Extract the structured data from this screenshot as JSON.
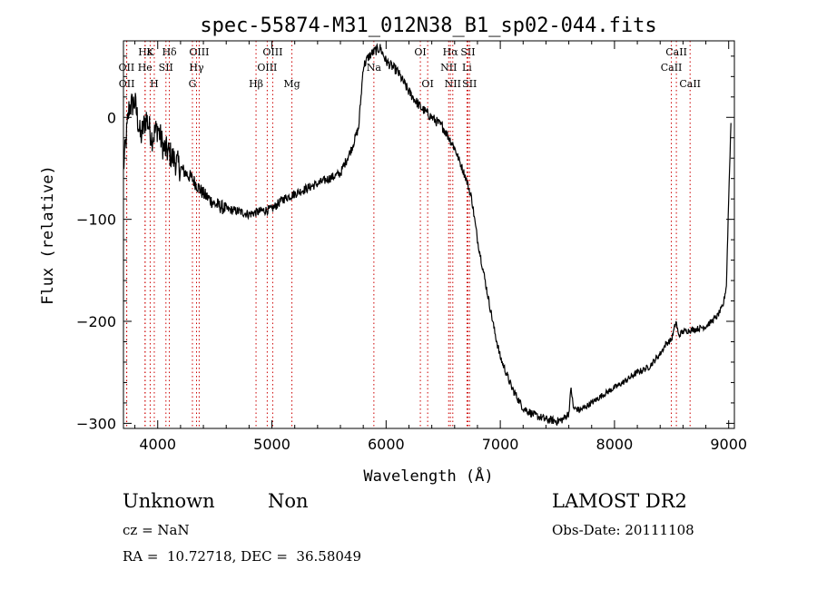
{
  "chart_data": {
    "type": "line",
    "title": "spec-55874-M31_012N38_B1_sp02-044.fits",
    "xlabel": "Wavelength (Å)",
    "ylabel": "Flux (relative)",
    "xlim": [
      3700,
      9050
    ],
    "ylim": [
      -305,
      75
    ],
    "xticks": [
      "4000",
      "5000",
      "6000",
      "7000",
      "8000",
      "9000"
    ],
    "yticks": [
      "0",
      "−100",
      "−200",
      "−300"
    ],
    "xtick_values": [
      4000,
      5000,
      6000,
      7000,
      8000,
      9000
    ],
    "ytick_values": [
      0,
      -100,
      -200,
      -300
    ],
    "grid": false,
    "series": [
      {
        "x": [
          3700,
          3750,
          3800,
          3850,
          3900,
          3950,
          4000,
          4050,
          4100,
          4200,
          4300,
          4400,
          4500,
          4600,
          4700,
          4800,
          4900,
          5000,
          5100,
          5200,
          5300,
          5400,
          5500,
          5600,
          5700,
          5760,
          5800,
          5850,
          5900,
          5950,
          6000,
          6100,
          6200,
          6300,
          6400,
          6500,
          6600,
          6700,
          6750,
          6800,
          6850,
          6900,
          6950,
          7000,
          7100,
          7200,
          7300,
          7400,
          7500,
          7550,
          7600,
          7620,
          7640,
          7700,
          7800,
          7900,
          8000,
          8100,
          8200,
          8300,
          8400,
          8450,
          8500,
          8540,
          8560,
          8600,
          8700,
          8800,
          8900,
          8950,
          8980,
          9000,
          9020
        ],
        "y": [
          -50,
          10,
          15,
          -20,
          0,
          -20,
          -10,
          -30,
          -35,
          -50,
          -60,
          -75,
          -85,
          -90,
          -92,
          -95,
          -92,
          -90,
          -80,
          -75,
          -70,
          -65,
          -60,
          -55,
          -30,
          -10,
          50,
          60,
          65,
          68,
          55,
          45,
          25,
          10,
          0,
          -10,
          -30,
          -60,
          -80,
          -120,
          -150,
          -180,
          -210,
          -235,
          -265,
          -285,
          -292,
          -296,
          -298,
          -296,
          -290,
          -265,
          -285,
          -287,
          -280,
          -272,
          -265,
          -258,
          -250,
          -245,
          -232,
          -222,
          -218,
          -200,
          -214,
          -210,
          -208,
          -205,
          -195,
          -185,
          -165,
          -80,
          -5
        ]
      }
    ],
    "line_markers": [
      {
        "label": "Hε",
        "x": 3890,
        "row": 1
      },
      {
        "label": "K",
        "x": 3934,
        "row": 1
      },
      {
        "label": "Hδ",
        "x": 4102,
        "row": 1
      },
      {
        "label": "OIII",
        "x": 4363,
        "row": 1
      },
      {
        "label": "OIII",
        "x": 5007,
        "row": 1
      },
      {
        "label": "OI",
        "x": 6300,
        "row": 1
      },
      {
        "label": "Hα",
        "x": 6563,
        "row": 1
      },
      {
        "label": "SII",
        "x": 6717,
        "row": 1
      },
      {
        "label": "CaII",
        "x": 8542,
        "row": 1
      },
      {
        "label": "OII",
        "x": 3727,
        "row": 2
      },
      {
        "label": "He",
        "x": 3889,
        "row": 2
      },
      {
        "label": "SII",
        "x": 4072,
        "row": 2
      },
      {
        "label": "Hγ",
        "x": 4340,
        "row": 2
      },
      {
        "label": "OIII",
        "x": 4959,
        "row": 2
      },
      {
        "label": "Na",
        "x": 5893,
        "row": 2
      },
      {
        "label": "NII",
        "x": 6548,
        "row": 2
      },
      {
        "label": "Li",
        "x": 6708,
        "row": 2
      },
      {
        "label": "CaII",
        "x": 8498,
        "row": 2
      },
      {
        "label": "OII",
        "x": 3729,
        "row": 3
      },
      {
        "label": "H",
        "x": 3970,
        "row": 3
      },
      {
        "label": "G",
        "x": 4304,
        "row": 3
      },
      {
        "label": "Hβ",
        "x": 4861,
        "row": 3
      },
      {
        "label": "Mg",
        "x": 5175,
        "row": 3
      },
      {
        "label": "OI",
        "x": 6364,
        "row": 3
      },
      {
        "label": "NII",
        "x": 6584,
        "row": 3
      },
      {
        "label": "SII",
        "x": 6731,
        "row": 3
      },
      {
        "label": "CaII",
        "x": 8662,
        "row": 3
      }
    ]
  },
  "info": {
    "class": "Unknown",
    "subclass": "Non",
    "survey": "LAMOST DR2",
    "cz": "cz = NaN",
    "obs_date": "Obs-Date: 20111108",
    "coords": "RA =  10.72718, DEC =  36.58049"
  },
  "colors": {
    "line": "#000000",
    "marker": "#cc0000",
    "axes": "#000000"
  }
}
